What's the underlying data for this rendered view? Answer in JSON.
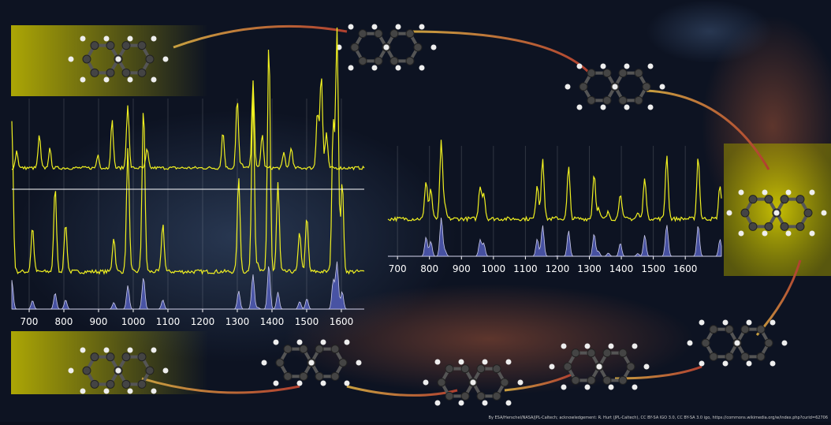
{
  "chart_data": [
    {
      "type": "line",
      "xlim": [
        650,
        1666
      ],
      "xticks": [
        700,
        800,
        900,
        1000,
        1100,
        1200,
        1300,
        1400,
        1500,
        1600
      ]
    },
    {
      "type": "line",
      "xlim": [
        670,
        1713
      ],
      "xticks": [
        700,
        800,
        900,
        1000,
        1100,
        1200,
        1300,
        1400,
        1500,
        1600
      ]
    }
  ],
  "credit": "By ESA/Herschel/NASA/JPL-Caltech; acknowledgement: R. Hurt (JPL-Caltech), CC BY-SA IGO 3.0, CC BY-SA 3.0 igo, https://commons.wikimedia.org/w/index.php?curid=62706"
}
